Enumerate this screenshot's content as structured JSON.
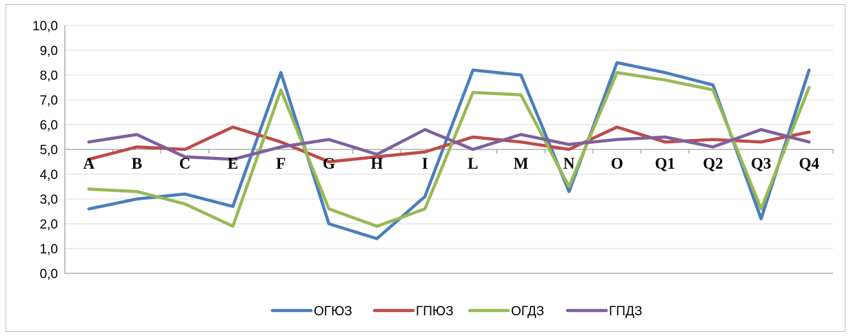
{
  "chart_data": {
    "type": "line",
    "categories": [
      "A",
      "B",
      "C",
      "E",
      "F",
      "G",
      "H",
      "I",
      "L",
      "M",
      "N",
      "O",
      "Q1",
      "Q2",
      "Q3",
      "Q4"
    ],
    "series": [
      {
        "name": "ОГЮЗ",
        "color": "#4a7ebb",
        "values": [
          2.6,
          3.0,
          3.2,
          2.7,
          8.1,
          2.0,
          1.4,
          3.1,
          8.2,
          8.0,
          3.3,
          8.5,
          8.1,
          7.6,
          2.2,
          8.2
        ]
      },
      {
        "name": "ГПЮЗ",
        "color": "#be4b48",
        "values": [
          4.6,
          5.1,
          5.0,
          5.9,
          5.3,
          4.5,
          4.7,
          4.9,
          5.5,
          5.3,
          5.0,
          5.9,
          5.3,
          5.4,
          5.3,
          5.7
        ]
      },
      {
        "name": "ОГДЗ",
        "color": "#98b954",
        "values": [
          3.4,
          3.3,
          2.8,
          1.9,
          7.4,
          2.6,
          1.9,
          2.6,
          7.3,
          7.2,
          3.5,
          8.1,
          7.8,
          7.4,
          2.6,
          7.5
        ]
      },
      {
        "name": "ГПДЗ",
        "color": "#7d60a0",
        "values": [
          5.3,
          5.6,
          4.7,
          4.6,
          5.1,
          5.4,
          4.8,
          5.8,
          5.0,
          5.6,
          5.2,
          5.4,
          5.5,
          5.1,
          5.8,
          5.3
        ]
      }
    ],
    "y_ticks": [
      "0,0",
      "1,0",
      "2,0",
      "3,0",
      "4,0",
      "5,0",
      "6,0",
      "7,0",
      "8,0",
      "9,0",
      "10,0"
    ],
    "ylim": [
      0,
      10
    ],
    "x_axis_crosses_at": 5.0,
    "grid": "horizontal",
    "legend_position": "bottom",
    "title": "",
    "xlabel": "",
    "ylabel": ""
  }
}
